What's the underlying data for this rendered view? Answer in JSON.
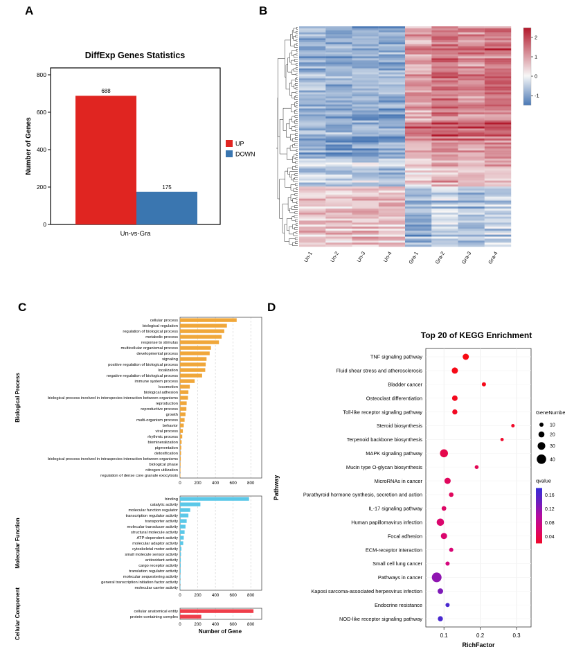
{
  "figure": {
    "panel_a_letter": "A",
    "panel_b_letter": "B",
    "panel_c_letter": "C",
    "panel_d_letter": "D"
  },
  "chart_data": [
    {
      "id": "diffexp_bar",
      "type": "bar",
      "title": "DiffExp Genes Statistics",
      "xlabel": "Un-vs-Gra",
      "ylabel": "Number of Genes",
      "ylim": [
        0,
        870
      ],
      "yticks": [
        0,
        200,
        400,
        600,
        800
      ],
      "categories": [
        "UP",
        "DOWN"
      ],
      "values": [
        688,
        175
      ],
      "colors": [
        "#e02521",
        "#3a76b0"
      ],
      "legend": [
        {
          "label": "UP",
          "color": "#e02521"
        },
        {
          "label": "DOWN",
          "color": "#3a76b0"
        }
      ]
    },
    {
      "id": "heatmap",
      "type": "heatmap",
      "columns": [
        "Un-1",
        "Un-2",
        "Un-3",
        "Un-4",
        "Gra-1",
        "Gra-2",
        "Gra-3",
        "Gra-4"
      ],
      "row_count": 110,
      "row_dendrogram": true,
      "colorbar_ticks": [
        2,
        1,
        0,
        -1
      ],
      "colorbar_range": [
        2.5,
        -1.5
      ],
      "palette": {
        "high": "#b2182b",
        "mid": "#f7f7f7",
        "low": "#4a78b5"
      },
      "bands": [
        {
          "until": 0.6,
          "un": -0.9,
          "gra": 1.05
        },
        {
          "until": 0.72,
          "un": -0.45,
          "gra": 0.55
        },
        {
          "until": 1.0,
          "un": 0.55,
          "gra": -0.85
        }
      ],
      "col_bias": [
        0,
        -0.1,
        0.05,
        -0.05,
        -0.1,
        0.35,
        0.1,
        0.3
      ]
    },
    {
      "id": "go_bars",
      "type": "bar",
      "xlabel": "Number of Gene",
      "xticks": [
        0,
        200,
        400,
        600,
        800
      ],
      "xlim": [
        0,
        900
      ],
      "sections": [
        {
          "name": "Biological Process",
          "color": "#f0a73a",
          "items": [
            {
              "label": "cellular process",
              "value": 640
            },
            {
              "label": "biological regulation",
              "value": 530
            },
            {
              "label": "regulation of biological process",
              "value": 500
            },
            {
              "label": "metabolic process",
              "value": 470
            },
            {
              "label": "response to stimulus",
              "value": 440
            },
            {
              "label": "multicellular organismal process",
              "value": 350
            },
            {
              "label": "developmental process",
              "value": 335
            },
            {
              "label": "signaling",
              "value": 300
            },
            {
              "label": "positive regulation of biological process",
              "value": 290
            },
            {
              "label": "localization",
              "value": 285
            },
            {
              "label": "negative regulation of biological process",
              "value": 250
            },
            {
              "label": "immune system process",
              "value": 165
            },
            {
              "label": "locomotion",
              "value": 110
            },
            {
              "label": "biological adhesion",
              "value": 95
            },
            {
              "label": "biological process involved in interspecies interaction between organisms",
              "value": 90
            },
            {
              "label": "reproduction",
              "value": 75
            },
            {
              "label": "reproductive process",
              "value": 72
            },
            {
              "label": "growth",
              "value": 62
            },
            {
              "label": "multi-organism process",
              "value": 52
            },
            {
              "label": "behavior",
              "value": 42
            },
            {
              "label": "viral process",
              "value": 32
            },
            {
              "label": "rhythmic process",
              "value": 25
            },
            {
              "label": "biomineralization",
              "value": 18
            },
            {
              "label": "pigmentation",
              "value": 14
            },
            {
              "label": "detoxification",
              "value": 12
            },
            {
              "label": "biological process involved in intraspecies interaction between organisms",
              "value": 9
            },
            {
              "label": "biological phase",
              "value": 6
            },
            {
              "label": "nitrogen utilization",
              "value": 5
            },
            {
              "label": "regulation of dense core granule exocytosis",
              "value": 4
            }
          ]
        },
        {
          "name": "Molecular Function",
          "color": "#5bc8e8",
          "items": [
            {
              "label": "binding",
              "value": 780
            },
            {
              "label": "catalytic activity",
              "value": 230
            },
            {
              "label": "molecular function regulator",
              "value": 115
            },
            {
              "label": "transcription regulator activity",
              "value": 95
            },
            {
              "label": "transporter activity",
              "value": 75
            },
            {
              "label": "molecular transducer activity",
              "value": 62
            },
            {
              "label": "structural molecule activity",
              "value": 52
            },
            {
              "label": "ATP-dependent activity",
              "value": 42
            },
            {
              "label": "molecular adaptor activity",
              "value": 36
            },
            {
              "label": "cytoskeletal motor activity",
              "value": 16
            },
            {
              "label": "small molecule sensor activity",
              "value": 11
            },
            {
              "label": "antioxidant activity",
              "value": 9
            },
            {
              "label": "cargo receptor activity",
              "value": 8
            },
            {
              "label": "translation regulator activity",
              "value": 7
            },
            {
              "label": "molecular sequestering activity",
              "value": 5
            },
            {
              "label": "general transcription initiation factor activity",
              "value": 4
            },
            {
              "label": "molecular carrier activity",
              "value": 3
            }
          ]
        },
        {
          "name": "Cellular Component",
          "color": "#ef3e4a",
          "items": [
            {
              "label": "cellular anatomical entity",
              "value": 830
            },
            {
              "label": "protein-containing complex",
              "value": 240
            }
          ]
        }
      ]
    },
    {
      "id": "kegg_bubble",
      "type": "scatter",
      "title": "Top 20 of KEGG Enrichment",
      "xlabel": "RichFactor",
      "ylabel": "Pathway",
      "xticks": [
        0.1,
        0.2,
        0.3
      ],
      "xlim": [
        0.05,
        0.34
      ],
      "size_legend": {
        "title": "GeneNumber",
        "values": [
          10,
          20,
          30,
          40
        ]
      },
      "color_legend": {
        "title": "qvalue",
        "ticks": [
          0.16,
          0.12,
          0.08,
          0.04
        ]
      },
      "points": [
        {
          "pathway": "TNF signaling pathway",
          "rich_factor": 0.16,
          "gene_number": 22,
          "qvalue": 0.005
        },
        {
          "pathway": "Fluid shear stress and atherosclerosis",
          "rich_factor": 0.13,
          "gene_number": 22,
          "qvalue": 0.008
        },
        {
          "pathway": "Bladder cancer",
          "rich_factor": 0.21,
          "gene_number": 10,
          "qvalue": 0.01
        },
        {
          "pathway": "Osteoclast differentiation",
          "rich_factor": 0.13,
          "gene_number": 18,
          "qvalue": 0.012
        },
        {
          "pathway": "Toll-like receptor signaling pathway",
          "rich_factor": 0.13,
          "gene_number": 15,
          "qvalue": 0.015
        },
        {
          "pathway": "Steroid biosynthesis",
          "rich_factor": 0.29,
          "gene_number": 6,
          "qvalue": 0.018
        },
        {
          "pathway": "Terpenoid backbone biosynthesis",
          "rich_factor": 0.26,
          "gene_number": 5,
          "qvalue": 0.02
        },
        {
          "pathway": "MAPK signaling pathway",
          "rich_factor": 0.1,
          "gene_number": 32,
          "qvalue": 0.04
        },
        {
          "pathway": "Mucin type O-glycan biosynthesis",
          "rich_factor": 0.19,
          "gene_number": 8,
          "qvalue": 0.045
        },
        {
          "pathway": "MicroRNAs in cancer",
          "rich_factor": 0.11,
          "gene_number": 22,
          "qvalue": 0.05
        },
        {
          "pathway": "Parathyroid hormone synthesis, secretion and action",
          "rich_factor": 0.12,
          "gene_number": 12,
          "qvalue": 0.05
        },
        {
          "pathway": "IL-17 signaling pathway",
          "rich_factor": 0.1,
          "gene_number": 13,
          "qvalue": 0.055
        },
        {
          "pathway": "Human papillomavirus infection",
          "rich_factor": 0.09,
          "gene_number": 28,
          "qvalue": 0.06
        },
        {
          "pathway": "Focal adhesion",
          "rich_factor": 0.1,
          "gene_number": 22,
          "qvalue": 0.06
        },
        {
          "pathway": "ECM-receptor interaction",
          "rich_factor": 0.12,
          "gene_number": 10,
          "qvalue": 0.065
        },
        {
          "pathway": "Small cell lung cancer",
          "rich_factor": 0.11,
          "gene_number": 10,
          "qvalue": 0.07
        },
        {
          "pathway": "Pathways in cancer",
          "rich_factor": 0.08,
          "gene_number": 42,
          "qvalue": 0.12
        },
        {
          "pathway": "Kaposi sarcoma-associated herpesvirus infection",
          "rich_factor": 0.09,
          "gene_number": 18,
          "qvalue": 0.13
        },
        {
          "pathway": "Endocrine resistance",
          "rich_factor": 0.11,
          "gene_number": 10,
          "qvalue": 0.16
        },
        {
          "pathway": "NOD-like receptor signaling pathway",
          "rich_factor": 0.09,
          "gene_number": 15,
          "qvalue": 0.16
        }
      ]
    }
  ]
}
